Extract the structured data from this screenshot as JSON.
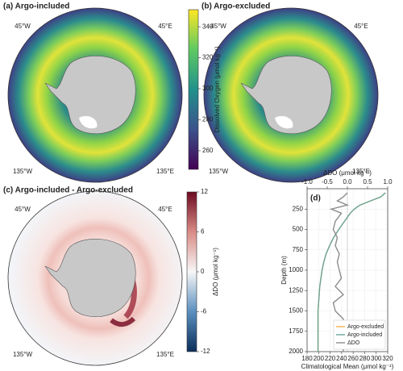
{
  "chart_data": [
    {
      "type": "map",
      "title": "(a) Argo-included",
      "lon_labels": [
        "45°W",
        "45°E",
        "135°W",
        "135°E"
      ],
      "colorbar": {
        "label": "Dissolved Oxygen (μmol kg⁻¹)",
        "lim": [
          248,
          351
        ],
        "ticks": [
          260,
          280,
          300,
          320,
          340
        ],
        "colors": [
          "#440154",
          "#3b528b",
          "#21918c",
          "#5ec962",
          "#fde725"
        ]
      }
    },
    {
      "type": "map",
      "title": "(b) Argo-excluded",
      "lon_labels": [
        "45°W",
        "45°E",
        "135°W",
        "135°E"
      ]
    },
    {
      "type": "map",
      "title": "(c) Argo-included - Argo-excluded",
      "lon_labels": [
        "45°W",
        "45°E",
        "135°W",
        "135°E"
      ],
      "colorbar": {
        "label": "ΔDO (μmol kg⁻¹)",
        "lim": [
          -12,
          12
        ],
        "ticks": [
          -12,
          -6,
          0,
          6,
          12
        ],
        "colors": [
          "#0b2e5a",
          "#5b8fbf",
          "#f7f7f7",
          "#d98b85",
          "#6d0b22"
        ]
      }
    },
    {
      "type": "line",
      "title": "(d)",
      "xlabel": "Climatological Mean (μmol kg⁻¹)",
      "x2label": "ΔDO (μmol kg⁻¹)",
      "ylabel": "Depth (m)",
      "xlim": [
        180,
        320
      ],
      "xticks": [
        180,
        200,
        220,
        240,
        260,
        280,
        300,
        320
      ],
      "x2lim": [
        -1,
        1
      ],
      "x2ticks": [
        {
          "value": -1,
          "label": "-1.0"
        },
        {
          "value": -0.5,
          "label": "-0.5"
        },
        {
          "value": 0,
          "label": "0.0"
        },
        {
          "value": 0.5,
          "label": "0.5"
        },
        {
          "value": 1,
          "label": "1.0"
        }
      ],
      "ylim": [
        0,
        2000
      ],
      "yticks": [
        250,
        500,
        750,
        1000,
        1250,
        1500,
        1750,
        2000
      ],
      "y_inverted": true,
      "grid": true,
      "legend": "lower right",
      "y": [
        50,
        100,
        150,
        200,
        250,
        300,
        400,
        500,
        600,
        700,
        800,
        900,
        1000,
        1100,
        1200,
        1300,
        1400,
        1500,
        1600,
        1700,
        1800,
        1900,
        2000
      ],
      "series": [
        {
          "name": "Argo-excluded",
          "color": "#f2b04a",
          "values": [
            316,
            308,
            290,
            272,
            262,
            255,
            245,
            235,
            226,
            219,
            213,
            209,
            206,
            204,
            202,
            201,
            200,
            199,
            199,
            199,
            199,
            199,
            199
          ]
        },
        {
          "name": "Argo-included",
          "color": "#6aa59a",
          "values": [
            316,
            308,
            290,
            272,
            262,
            255,
            245,
            235,
            226,
            219,
            213,
            209,
            206,
            204,
            202,
            201,
            200,
            199,
            199,
            199,
            199,
            199,
            199
          ]
        },
        {
          "name": "ΔDO",
          "color": "#8c8c8c",
          "axis": "x2",
          "values": [
            0.0,
            -0.1,
            -0.25,
            0.0,
            -0.4,
            -0.15,
            -0.3,
            -0.35,
            -0.25,
            -0.3,
            -0.2,
            -0.25,
            -0.2,
            -0.15,
            -0.3,
            -0.1,
            -0.35,
            -0.3,
            -0.1,
            -0.1,
            -0.15,
            -0.1,
            -0.1
          ]
        }
      ]
    }
  ]
}
